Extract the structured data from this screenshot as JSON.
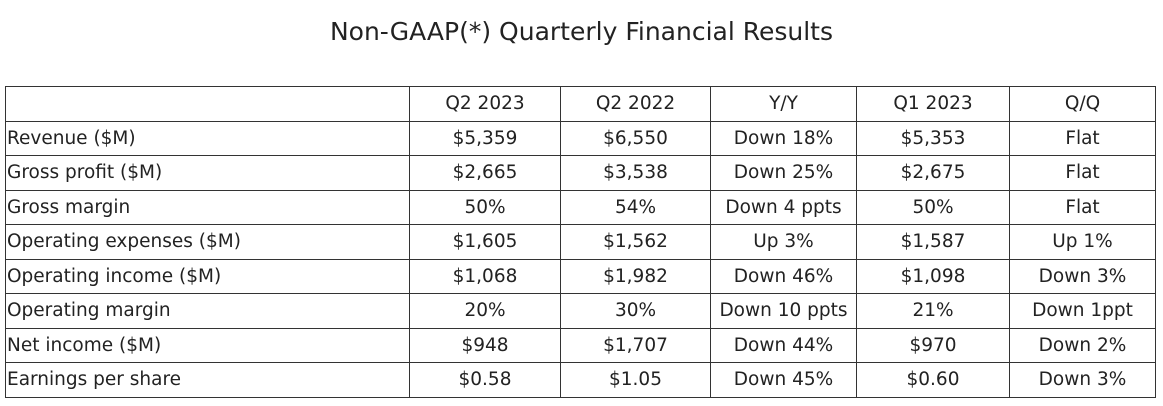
{
  "title": "Non-GAAP(*) Quarterly Financial Results",
  "table": {
    "headers": [
      "",
      "Q2 2023",
      "Q2 2022",
      "Y/Y",
      "Q1 2023",
      "Q/Q"
    ],
    "rows": [
      [
        "Revenue ($M)",
        "$5,359",
        "$6,550",
        "Down 18%",
        "$5,353",
        "Flat"
      ],
      [
        "Gross profit ($M)",
        "$2,665",
        "$3,538",
        "Down 25%",
        "$2,675",
        "Flat"
      ],
      [
        "Gross margin",
        "50%",
        "54%",
        "Down 4 ppts",
        "50%",
        "Flat"
      ],
      [
        "Operating expenses ($M)",
        "$1,605",
        "$1,562",
        "Up 3%",
        "$1,587",
        "Up 1%"
      ],
      [
        "Operating income ($M)",
        "$1,068",
        "$1,982",
        "Down 46%",
        "$1,098",
        "Down 3%"
      ],
      [
        "Operating margin",
        "20%",
        "30%",
        "Down 10 ppts",
        "21%",
        "Down 1ppt"
      ],
      [
        "Net income ($M)",
        "$948",
        "$1,707",
        "Down 44%",
        "$970",
        "Down 2%"
      ],
      [
        "Earnings per share",
        "$0.58",
        "$1.05",
        "Down 45%",
        "$0.60",
        "Down 3%"
      ]
    ]
  }
}
